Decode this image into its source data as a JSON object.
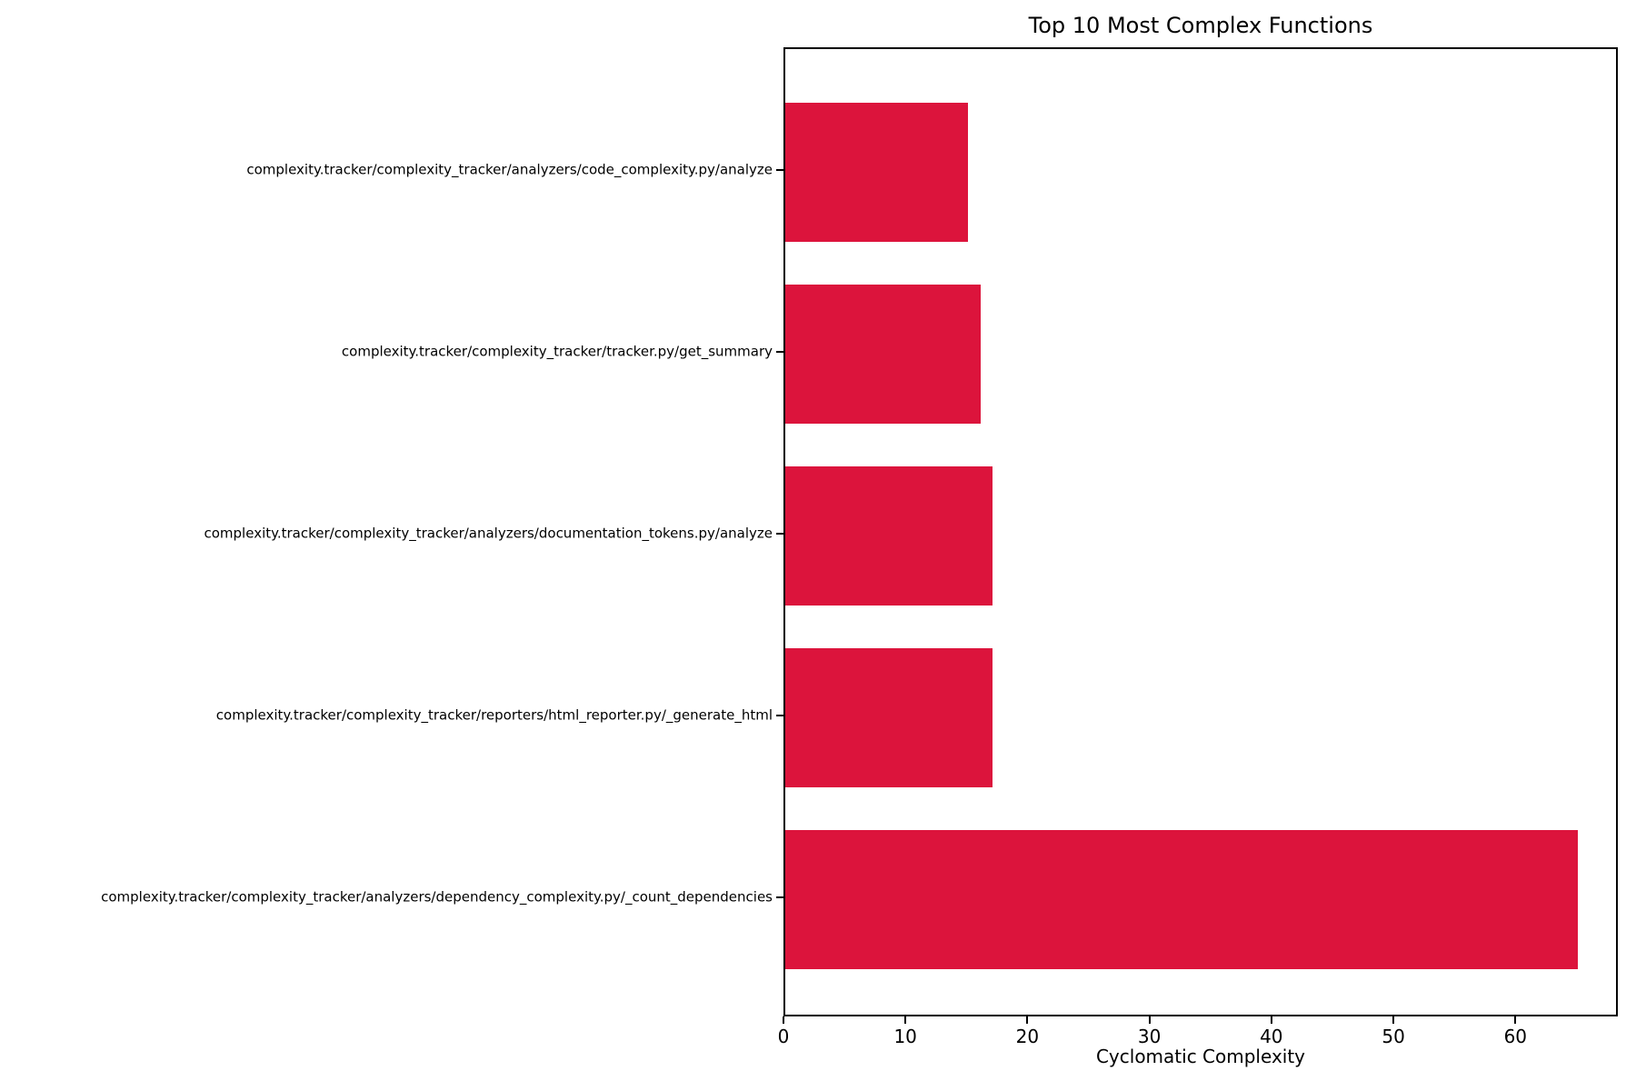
{
  "chart_data": {
    "type": "bar",
    "orientation": "horizontal",
    "title": "Top 10 Most Complex Functions",
    "xlabel": "Cyclomatic Complexity",
    "ylabel": "",
    "categories": [
      "complexity.tracker/complexity_tracker/analyzers/code_complexity.py/analyze",
      "complexity.tracker/complexity_tracker/tracker.py/get_summary",
      "complexity.tracker/complexity_tracker/analyzers/documentation_tokens.py/analyze",
      "complexity.tracker/complexity_tracker/reporters/html_reporter.py/_generate_html",
      "complexity.tracker/complexity_tracker/analyzers/dependency_complexity.py/_count_dependencies"
    ],
    "values": [
      15,
      16,
      17,
      17,
      65
    ],
    "xticks": [
      0,
      10,
      20,
      30,
      40,
      50,
      60
    ],
    "xlim": [
      0,
      68.4
    ],
    "bar_color": "#DC143C",
    "background_color": "#FFFFFF",
    "axis_color": "#000000",
    "grid": false,
    "legend": null
  }
}
